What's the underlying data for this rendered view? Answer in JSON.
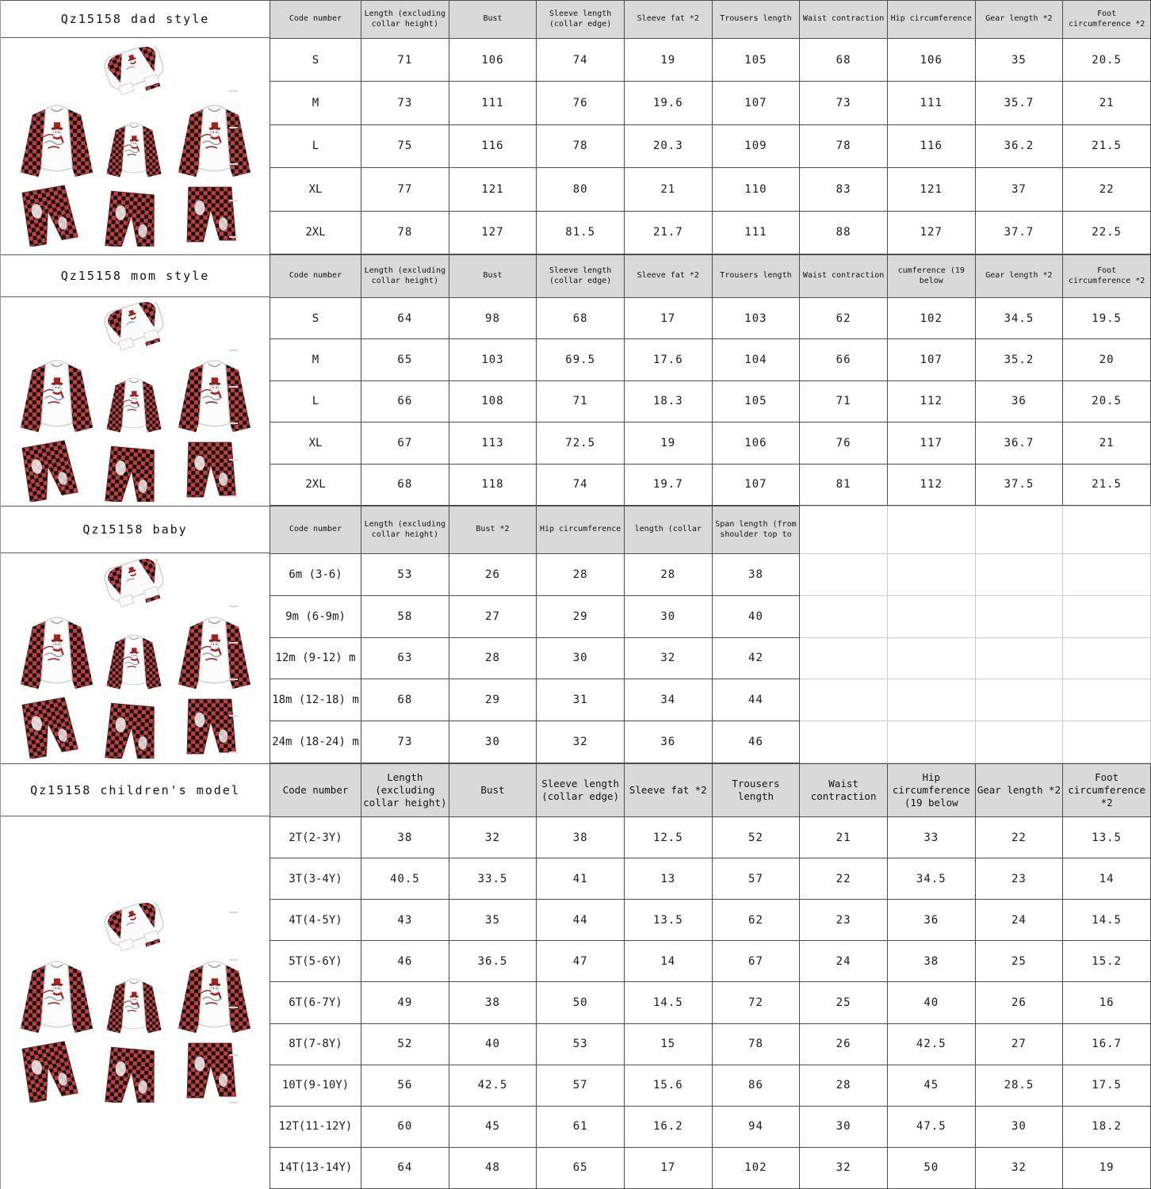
{
  "sections": [
    {
      "id": "dad",
      "title": "Qz15158 dad style",
      "headers": [
        "Code number",
        "Length (excluding collar height)",
        "Bust",
        "Sleeve length (collar edge)",
        "Sleeve fat *2",
        "Trousers length",
        "Waist contraction",
        "Hip circumference",
        "Gear length *2",
        "Foot circumference *2"
      ],
      "rows": [
        [
          "S",
          "71",
          "106",
          "74",
          "19",
          "105",
          "68",
          "106",
          "35",
          "20.5"
        ],
        [
          "M",
          "73",
          "111",
          "76",
          "19.6",
          "107",
          "73",
          "111",
          "35.7",
          "21"
        ],
        [
          "L",
          "75",
          "116",
          "78",
          "20.3",
          "109",
          "78",
          "116",
          "36.2",
          "21.5"
        ],
        [
          "XL",
          "77",
          "121",
          "80",
          "21",
          "110",
          "83",
          "121",
          "37",
          "22"
        ],
        [
          "2XL",
          "78",
          "127",
          "81.5",
          "21.7",
          "111",
          "88",
          "127",
          "37.7",
          "22.5"
        ]
      ]
    },
    {
      "id": "mom",
      "title": "Qz15158 mom style",
      "headers": [
        "Code number",
        "Length (excluding collar height)",
        "Bust",
        "Sleeve length (collar edge)",
        "Sleeve fat *2",
        "Trousers length",
        "Waist contraction",
        "cumference (19 below",
        "Gear length *2",
        "Foot circumference *2"
      ],
      "rows": [
        [
          "S",
          "64",
          "98",
          "68",
          "17",
          "103",
          "62",
          "102",
          "34.5",
          "19.5"
        ],
        [
          "M",
          "65",
          "103",
          "69.5",
          "17.6",
          "104",
          "66",
          "107",
          "35.2",
          "20"
        ],
        [
          "L",
          "66",
          "108",
          "71",
          "18.3",
          "105",
          "71",
          "112",
          "36",
          "20.5"
        ],
        [
          "XL",
          "67",
          "113",
          "72.5",
          "19",
          "106",
          "76",
          "117",
          "36.7",
          "21"
        ],
        [
          "2XL",
          "68",
          "118",
          "74",
          "19.7",
          "107",
          "81",
          "112",
          "37.5",
          "21.5"
        ]
      ]
    },
    {
      "id": "baby",
      "title": "Qz15158 baby",
      "ghost_from": 6,
      "headers": [
        "Code number",
        "Length (excluding collar height)",
        "Bust *2",
        "Hip circumference",
        "length (collar",
        "Span length (from shoulder top to"
      ],
      "rows": [
        [
          "6m (3-6)",
          "53",
          "26",
          "28",
          "28",
          "38"
        ],
        [
          "9m (6-9m)",
          "58",
          "27",
          "29",
          "30",
          "40"
        ],
        [
          "12m (9-12) m",
          "63",
          "28",
          "30",
          "32",
          "42"
        ],
        [
          "18m (12-18) m",
          "68",
          "29",
          "31",
          "34",
          "44"
        ],
        [
          "24m (18-24) m",
          "73",
          "30",
          "32",
          "36",
          "46"
        ]
      ]
    },
    {
      "id": "children",
      "title": "Qz15158 children's model",
      "headers": [
        "Code number",
        "Length (excluding collar height)",
        "Bust",
        "Sleeve length (collar edge)",
        "Sleeve fat *2",
        "Trousers length",
        "Waist contraction",
        "Hip circumference (19 below",
        "Gear length *2",
        "Foot circumference *2"
      ],
      "rows": [
        [
          "2T(2-3Y)",
          "38",
          "32",
          "38",
          "12.5",
          "52",
          "21",
          "33",
          "22",
          "13.5"
        ],
        [
          "3T(3-4Y)",
          "40.5",
          "33.5",
          "41",
          "13",
          "57",
          "22",
          "34.5",
          "23",
          "14"
        ],
        [
          "4T(4-5Y)",
          "43",
          "35",
          "44",
          "13.5",
          "62",
          "23",
          "36",
          "24",
          "14.5"
        ],
        [
          "5T(5-6Y)",
          "46",
          "36.5",
          "47",
          "14",
          "67",
          "24",
          "38",
          "25",
          "15.2"
        ],
        [
          "6T(6-7Y)",
          "49",
          "38",
          "50",
          "14.5",
          "72",
          "25",
          "40",
          "26",
          "16"
        ],
        [
          "8T(7-8Y)",
          "52",
          "40",
          "53",
          "15",
          "78",
          "26",
          "42.5",
          "27",
          "16.7"
        ],
        [
          "10T(9-10Y)",
          "56",
          "42.5",
          "57",
          "15.6",
          "86",
          "28",
          "45",
          "28.5",
          "17.5"
        ],
        [
          "12T(11-12Y)",
          "60",
          "45",
          "61",
          "16.2",
          "94",
          "30",
          "47.5",
          "30",
          "18.2"
        ],
        [
          "14T(13-14Y)",
          "64",
          "48",
          "65",
          "17",
          "102",
          "32",
          "50",
          "32",
          "19"
        ]
      ]
    }
  ],
  "colors": {
    "header_bg": "#d9d9d9",
    "grid_line": "#4d4d4d",
    "ghost_line": "#cccccc",
    "plaid_red": "#a82a2a",
    "plaid_black": "#151515"
  }
}
